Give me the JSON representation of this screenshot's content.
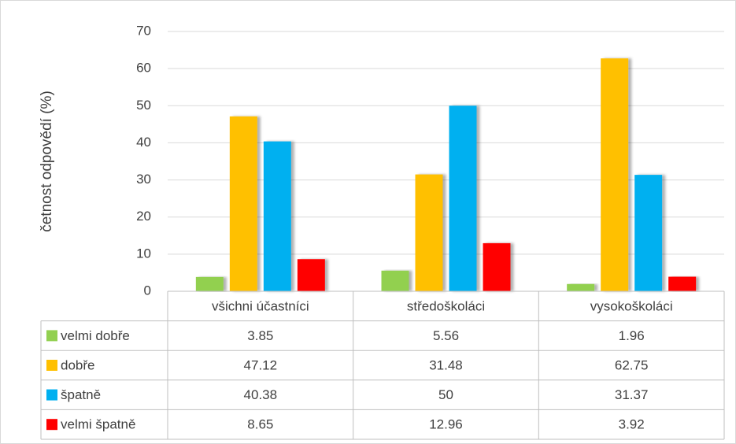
{
  "chart_data": {
    "type": "bar",
    "y_label": "četnost odpovědí (%)",
    "categories": [
      "všichni účastníci",
      "středoškoláci",
      "vysokoškoláci"
    ],
    "series": [
      {
        "name": "velmi dobře",
        "color": "#92d050",
        "values": [
          3.85,
          5.56,
          1.96
        ]
      },
      {
        "name": "dobře",
        "color": "#ffc000",
        "values": [
          47.12,
          31.48,
          62.75
        ]
      },
      {
        "name": "špatně",
        "color": "#00b0f0",
        "values": [
          40.38,
          50,
          31.37
        ]
      },
      {
        "name": "velmi špatně",
        "color": "#ff0000",
        "values": [
          8.65,
          12.96,
          3.92
        ]
      }
    ],
    "ylim": [
      0,
      70
    ],
    "yticks": [
      0,
      10,
      20,
      30,
      40,
      50,
      60,
      70
    ],
    "grid": true
  }
}
